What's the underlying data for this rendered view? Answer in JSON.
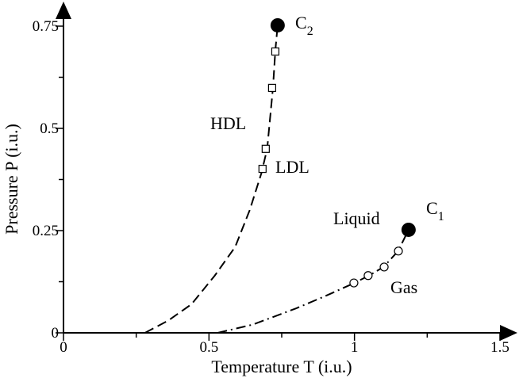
{
  "chart_data": {
    "type": "line",
    "xlabel": "Temperature T (i.u.)",
    "ylabel": "Pressure P (i.u.)",
    "xlim": [
      0,
      1.5
    ],
    "ylim": [
      0,
      0.75
    ],
    "xticks": [
      0,
      0.5,
      1,
      1.5
    ],
    "yticks": [
      0,
      0.25,
      0.5,
      0.75
    ],
    "xminorticks": [
      0.25,
      0.75,
      1.25
    ],
    "yminorticks": [
      0.125,
      0.375,
      0.625
    ],
    "color": "#000000",
    "lines": [
      {
        "style": "dashed",
        "x": [
          0.28,
          0.36,
          0.44,
          0.52,
          0.59,
          0.64,
          0.68,
          0.7,
          0.72,
          0.728,
          0.736
        ],
        "y": [
          0,
          0.03,
          0.07,
          0.14,
          0.21,
          0.3,
          0.39,
          0.45,
          0.6,
          0.69,
          0.752
        ]
      },
      {
        "style": "dashdot",
        "x": [
          0.53,
          0.65,
          0.8,
          0.9,
          1.0,
          1.05,
          1.1,
          1.15,
          1.186
        ],
        "y": [
          0,
          0.02,
          0.06,
          0.09,
          0.122,
          0.14,
          0.161,
          0.2,
          0.252
        ]
      }
    ],
    "markers": [
      {
        "marker": "square",
        "x": [
          0.728,
          0.717,
          0.695,
          0.684
        ],
        "y": [
          0.688,
          0.599,
          0.45,
          0.401
        ]
      },
      {
        "marker": "circle",
        "x": [
          1.151,
          1.102,
          1.047,
          0.998
        ],
        "y": [
          0.2,
          0.161,
          0.14,
          0.122
        ]
      }
    ],
    "critical_points": {
      "x": [
        0.736,
        1.186
      ],
      "y": [
        0.752,
        0.252
      ]
    },
    "annotations": [
      {
        "text": "C",
        "sub": "2"
      },
      {
        "text": "C",
        "sub": "1"
      },
      {
        "text": "HDL"
      },
      {
        "text": "LDL"
      },
      {
        "text": "Liquid"
      },
      {
        "text": "Gas"
      }
    ]
  }
}
